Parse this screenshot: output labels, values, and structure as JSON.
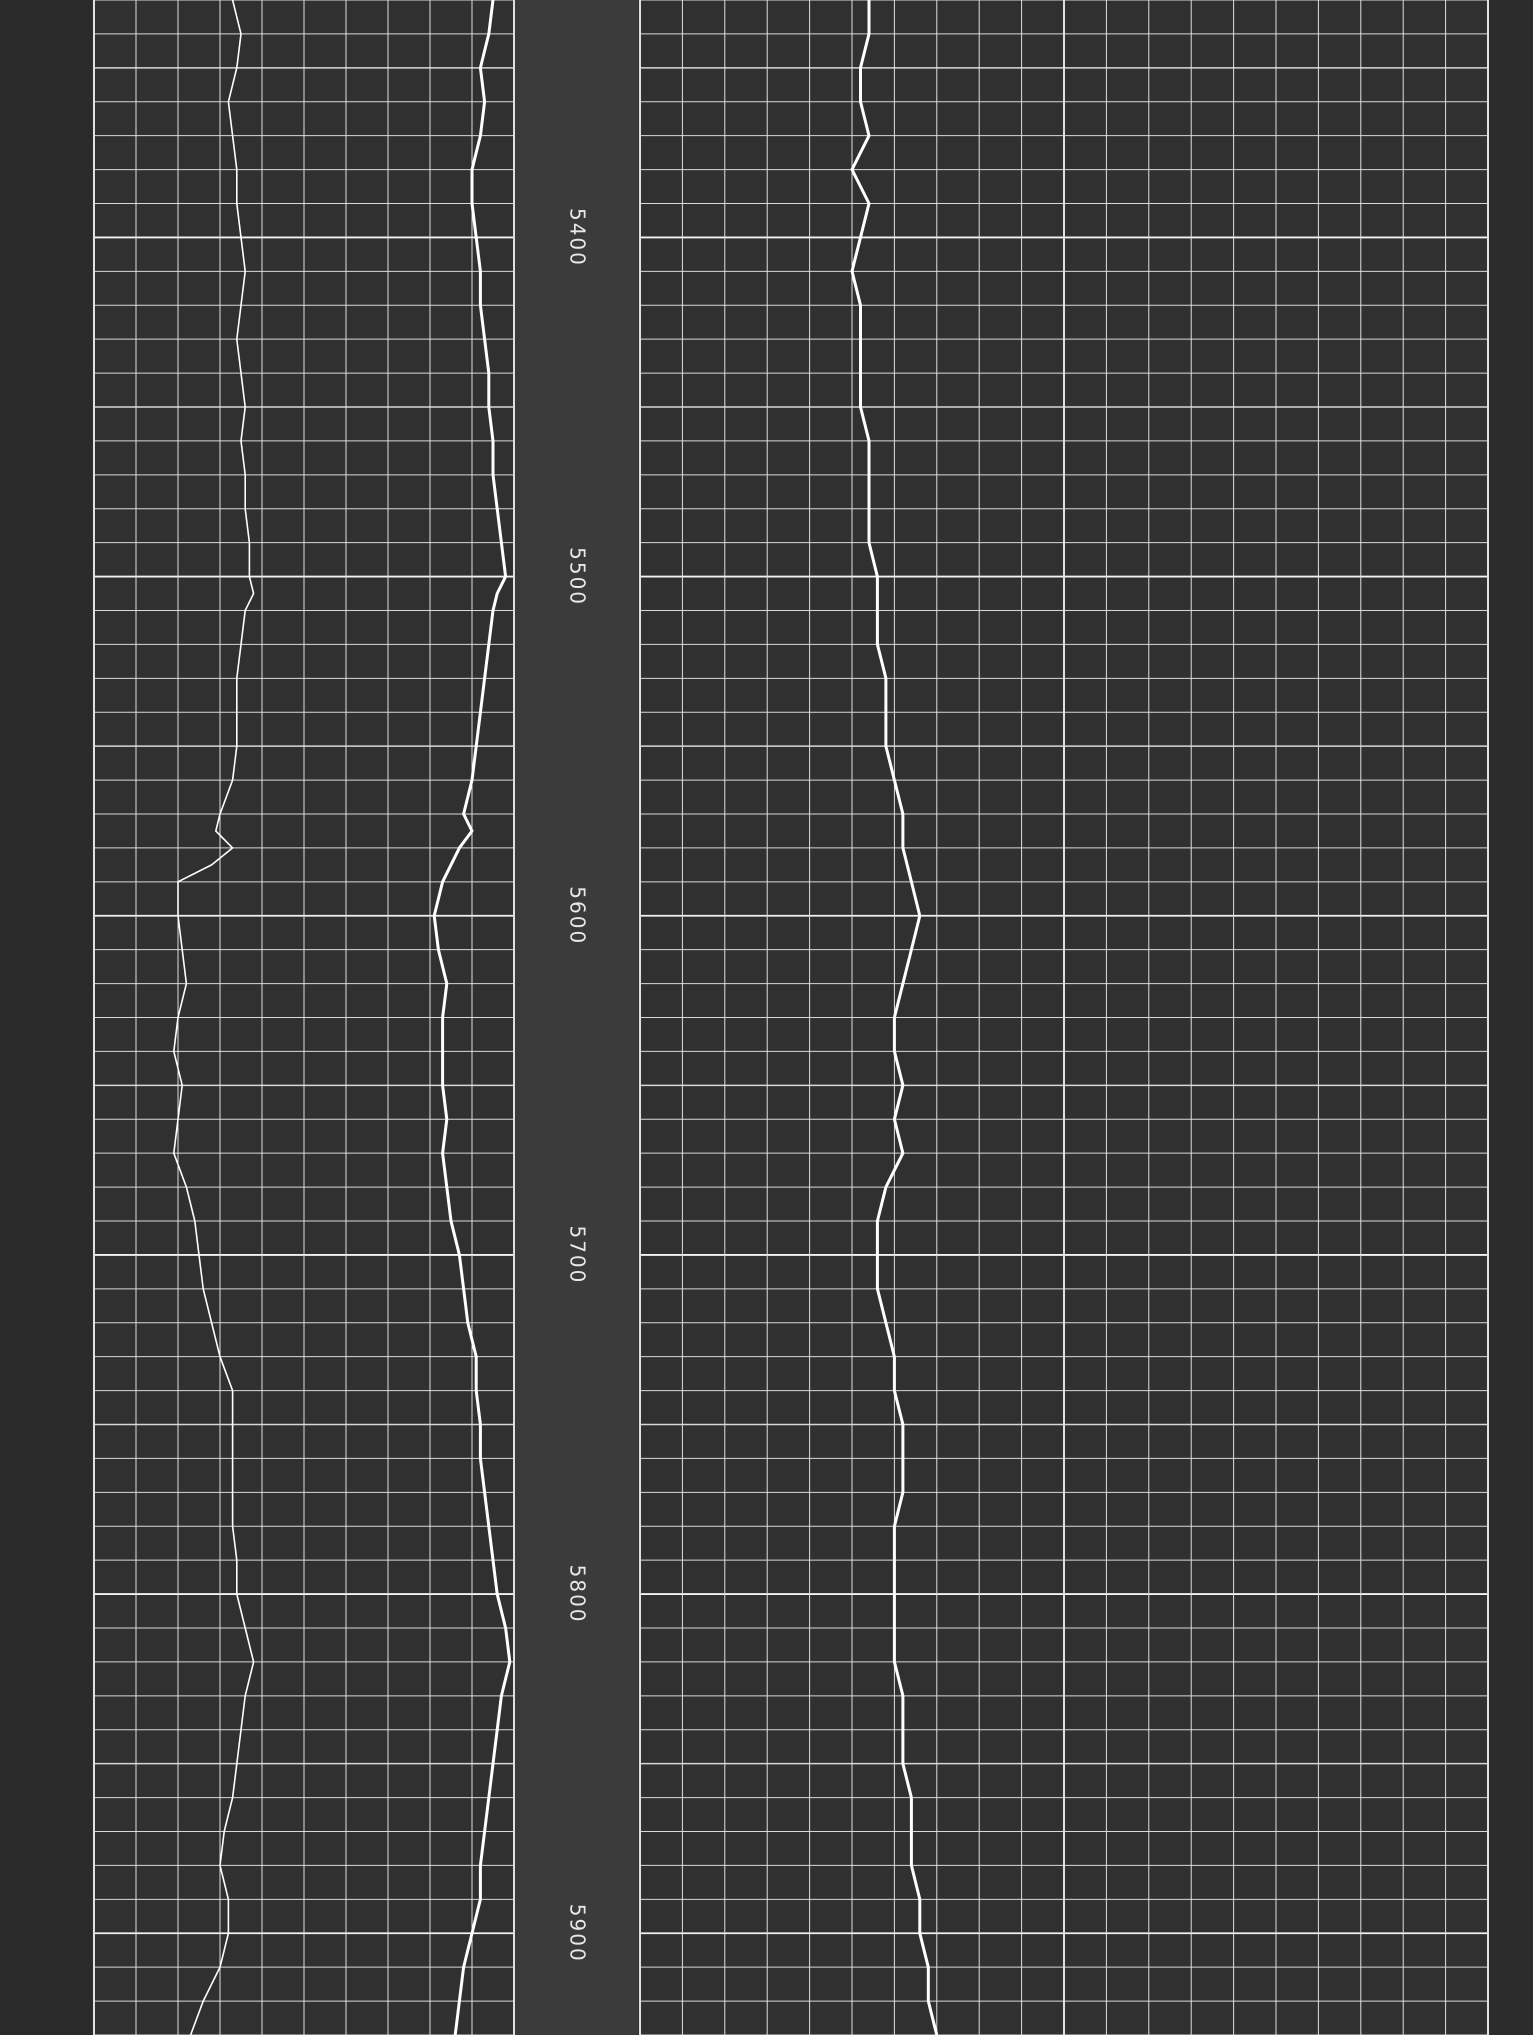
{
  "chart_data": {
    "type": "line",
    "title": "",
    "depth_labels": [
      "5400",
      "5500",
      "5600",
      "5700",
      "5800",
      "5900"
    ],
    "depth_range": [
      5330,
      5930
    ],
    "track1": {
      "series": [
        {
          "style": "fine",
          "points": [
            [
              5330,
              0.33
            ],
            [
              5340,
              0.35
            ],
            [
              5350,
              0.34
            ],
            [
              5360,
              0.32
            ],
            [
              5370,
              0.33
            ],
            [
              5380,
              0.34
            ],
            [
              5390,
              0.34
            ],
            [
              5400,
              0.35
            ],
            [
              5410,
              0.36
            ],
            [
              5420,
              0.35
            ],
            [
              5430,
              0.34
            ],
            [
              5440,
              0.35
            ],
            [
              5450,
              0.36
            ],
            [
              5460,
              0.35
            ],
            [
              5470,
              0.36
            ],
            [
              5480,
              0.36
            ],
            [
              5490,
              0.37
            ],
            [
              5500,
              0.37
            ],
            [
              5505,
              0.38
            ],
            [
              5510,
              0.36
            ],
            [
              5520,
              0.35
            ],
            [
              5530,
              0.34
            ],
            [
              5540,
              0.34
            ],
            [
              5550,
              0.34
            ],
            [
              5560,
              0.33
            ],
            [
              5570,
              0.3
            ],
            [
              5575,
              0.29
            ],
            [
              5580,
              0.33
            ],
            [
              5585,
              0.28
            ],
            [
              5590,
              0.2
            ],
            [
              5600,
              0.2
            ],
            [
              5610,
              0.21
            ],
            [
              5620,
              0.22
            ],
            [
              5630,
              0.2
            ],
            [
              5640,
              0.19
            ],
            [
              5650,
              0.21
            ],
            [
              5660,
              0.2
            ],
            [
              5670,
              0.19
            ],
            [
              5680,
              0.22
            ],
            [
              5690,
              0.24
            ],
            [
              5700,
              0.25
            ],
            [
              5710,
              0.26
            ],
            [
              5720,
              0.28
            ],
            [
              5730,
              0.3
            ],
            [
              5740,
              0.33
            ],
            [
              5750,
              0.33
            ],
            [
              5760,
              0.33
            ],
            [
              5770,
              0.33
            ],
            [
              5780,
              0.33
            ],
            [
              5790,
              0.34
            ],
            [
              5800,
              0.34
            ],
            [
              5810,
              0.36
            ],
            [
              5820,
              0.38
            ],
            [
              5830,
              0.36
            ],
            [
              5840,
              0.35
            ],
            [
              5850,
              0.34
            ],
            [
              5860,
              0.33
            ],
            [
              5870,
              0.31
            ],
            [
              5880,
              0.3
            ],
            [
              5890,
              0.32
            ],
            [
              5900,
              0.32
            ],
            [
              5910,
              0.3
            ],
            [
              5920,
              0.26
            ],
            [
              5930,
              0.23
            ]
          ]
        },
        {
          "style": "bold",
          "points": [
            [
              5330,
              0.95
            ],
            [
              5340,
              0.94
            ],
            [
              5350,
              0.92
            ],
            [
              5360,
              0.93
            ],
            [
              5370,
              0.92
            ],
            [
              5380,
              0.9
            ],
            [
              5390,
              0.9
            ],
            [
              5400,
              0.91
            ],
            [
              5410,
              0.92
            ],
            [
              5420,
              0.92
            ],
            [
              5430,
              0.93
            ],
            [
              5440,
              0.94
            ],
            [
              5450,
              0.94
            ],
            [
              5460,
              0.95
            ],
            [
              5470,
              0.95
            ],
            [
              5480,
              0.96
            ],
            [
              5490,
              0.97
            ],
            [
              5500,
              0.98
            ],
            [
              5505,
              0.96
            ],
            [
              5510,
              0.95
            ],
            [
              5520,
              0.94
            ],
            [
              5530,
              0.93
            ],
            [
              5540,
              0.92
            ],
            [
              5550,
              0.91
            ],
            [
              5560,
              0.9
            ],
            [
              5570,
              0.88
            ],
            [
              5575,
              0.9
            ],
            [
              5580,
              0.87
            ],
            [
              5590,
              0.83
            ],
            [
              5600,
              0.81
            ],
            [
              5610,
              0.82
            ],
            [
              5620,
              0.84
            ],
            [
              5630,
              0.83
            ],
            [
              5640,
              0.83
            ],
            [
              5650,
              0.83
            ],
            [
              5660,
              0.84
            ],
            [
              5670,
              0.83
            ],
            [
              5680,
              0.84
            ],
            [
              5690,
              0.85
            ],
            [
              5700,
              0.87
            ],
            [
              5710,
              0.88
            ],
            [
              5720,
              0.89
            ],
            [
              5730,
              0.91
            ],
            [
              5740,
              0.91
            ],
            [
              5750,
              0.92
            ],
            [
              5760,
              0.92
            ],
            [
              5770,
              0.93
            ],
            [
              5780,
              0.94
            ],
            [
              5790,
              0.95
            ],
            [
              5800,
              0.96
            ],
            [
              5810,
              0.98
            ],
            [
              5820,
              0.99
            ],
            [
              5830,
              0.97
            ],
            [
              5840,
              0.96
            ],
            [
              5850,
              0.95
            ],
            [
              5860,
              0.94
            ],
            [
              5870,
              0.93
            ],
            [
              5880,
              0.92
            ],
            [
              5890,
              0.92
            ],
            [
              5900,
              0.9
            ],
            [
              5910,
              0.88
            ],
            [
              5920,
              0.87
            ],
            [
              5930,
              0.86
            ]
          ]
        }
      ]
    },
    "track2": {
      "series": [
        {
          "style": "bold",
          "points": [
            [
              5330,
              0.27
            ],
            [
              5340,
              0.27
            ],
            [
              5350,
              0.26
            ],
            [
              5360,
              0.26
            ],
            [
              5370,
              0.27
            ],
            [
              5380,
              0.25
            ],
            [
              5390,
              0.27
            ],
            [
              5400,
              0.26
            ],
            [
              5410,
              0.25
            ],
            [
              5420,
              0.26
            ],
            [
              5430,
              0.26
            ],
            [
              5440,
              0.26
            ],
            [
              5450,
              0.26
            ],
            [
              5460,
              0.27
            ],
            [
              5470,
              0.27
            ],
            [
              5480,
              0.27
            ],
            [
              5490,
              0.27
            ],
            [
              5500,
              0.28
            ],
            [
              5510,
              0.28
            ],
            [
              5520,
              0.28
            ],
            [
              5530,
              0.29
            ],
            [
              5540,
              0.29
            ],
            [
              5550,
              0.29
            ],
            [
              5560,
              0.3
            ],
            [
              5570,
              0.31
            ],
            [
              5580,
              0.31
            ],
            [
              5590,
              0.32
            ],
            [
              5600,
              0.33
            ],
            [
              5610,
              0.32
            ],
            [
              5620,
              0.31
            ],
            [
              5630,
              0.3
            ],
            [
              5640,
              0.3
            ],
            [
              5650,
              0.31
            ],
            [
              5660,
              0.3
            ],
            [
              5670,
              0.31
            ],
            [
              5680,
              0.29
            ],
            [
              5690,
              0.28
            ],
            [
              5700,
              0.28
            ],
            [
              5710,
              0.28
            ],
            [
              5720,
              0.29
            ],
            [
              5730,
              0.3
            ],
            [
              5740,
              0.3
            ],
            [
              5750,
              0.31
            ],
            [
              5760,
              0.31
            ],
            [
              5770,
              0.31
            ],
            [
              5780,
              0.3
            ],
            [
              5790,
              0.3
            ],
            [
              5800,
              0.3
            ],
            [
              5810,
              0.3
            ],
            [
              5820,
              0.3
            ],
            [
              5830,
              0.31
            ],
            [
              5840,
              0.31
            ],
            [
              5850,
              0.31
            ],
            [
              5860,
              0.32
            ],
            [
              5870,
              0.32
            ],
            [
              5880,
              0.32
            ],
            [
              5890,
              0.33
            ],
            [
              5900,
              0.33
            ],
            [
              5910,
              0.34
            ],
            [
              5920,
              0.34
            ],
            [
              5930,
              0.35
            ]
          ]
        }
      ]
    },
    "grid": true
  }
}
